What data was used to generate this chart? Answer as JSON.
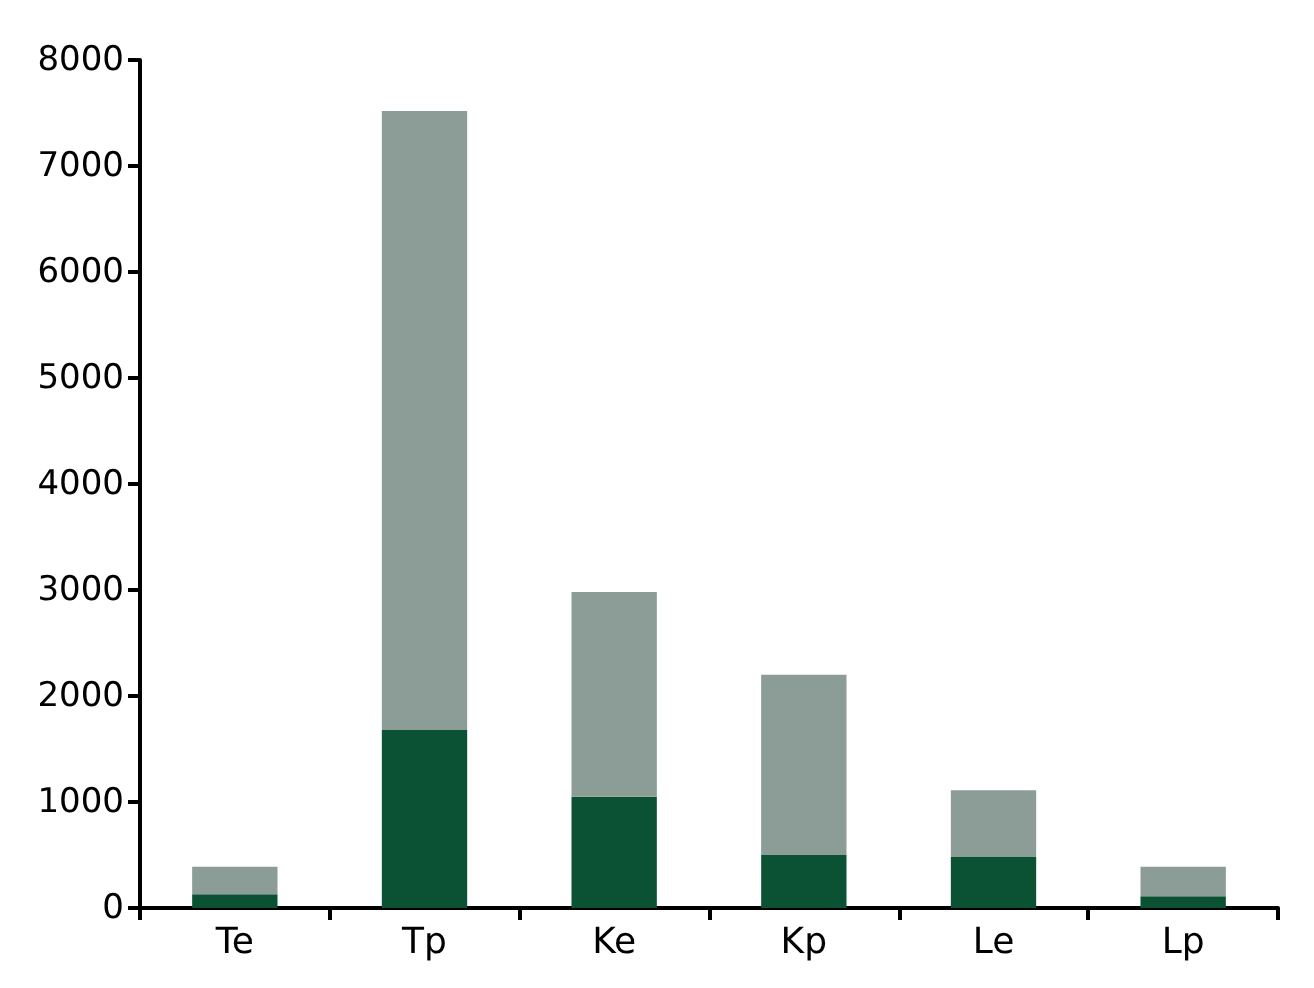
{
  "chart_data": {
    "type": "bar",
    "stacked": true,
    "categories": [
      "Te",
      "Tp",
      "Ke",
      "Kp",
      "Le",
      "Lp"
    ],
    "series": [
      {
        "color": "#0b5234",
        "values": [
          130,
          1680,
          1050,
          500,
          480,
          110
        ]
      },
      {
        "color": "#8c9d97",
        "values": [
          260,
          5840,
          1930,
          1700,
          630,
          280
        ]
      }
    ],
    "ylim": [
      0,
      8000
    ],
    "yticks": [
      0,
      1000,
      2000,
      3000,
      4000,
      5000,
      6000,
      7000,
      8000
    ],
    "grid": false
  }
}
